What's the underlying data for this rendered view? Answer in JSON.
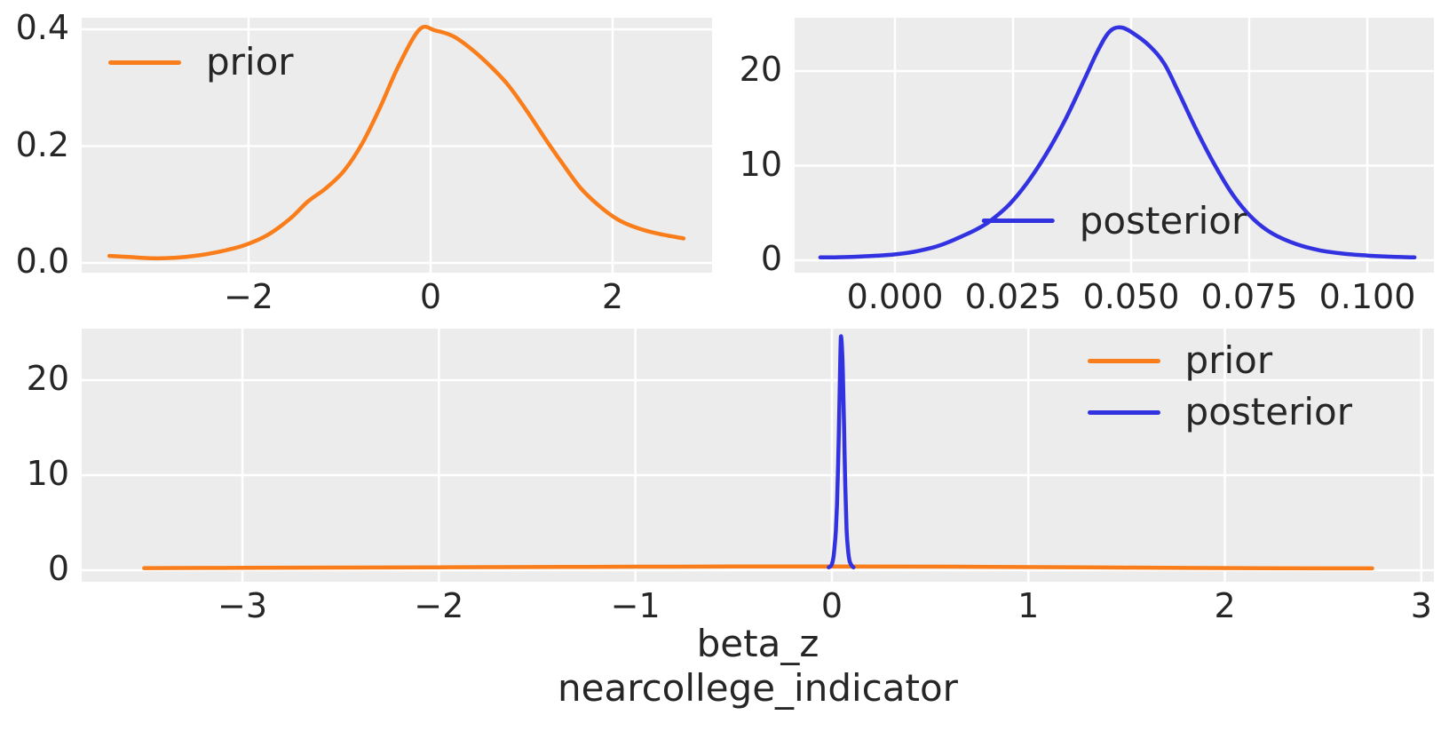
{
  "style": {
    "figure_background": "#ffffff",
    "axes_background": "#ececec",
    "grid_color": "#ffffff",
    "text_color": "#262626",
    "prior_color": "#f97e1b",
    "posterior_color": "#3232e1"
  },
  "chart_data": [
    {
      "id": "prior-density",
      "type": "line",
      "title": "",
      "xlabel": "",
      "ylabel": "",
      "grid": true,
      "xlim": [
        -3.834,
        3.093
      ],
      "ylim": [
        -0.0167,
        0.4198
      ],
      "xticks": [
        {
          "v": -2,
          "label": "−2"
        },
        {
          "v": 0,
          "label": "0"
        },
        {
          "v": 2,
          "label": "2"
        }
      ],
      "yticks": [
        {
          "v": 0.0,
          "label": "0.0"
        },
        {
          "v": 0.2,
          "label": "0.2"
        },
        {
          "v": 0.4,
          "label": "0.4"
        }
      ],
      "legend": {
        "position": "upper-left",
        "items": [
          {
            "label": "prior",
            "color": "#f97e1b"
          }
        ]
      },
      "series": [
        {
          "name": "prior",
          "color": "#f97e1b",
          "x": [
            -3.53,
            -3.3,
            -3.05,
            -2.8,
            -2.55,
            -2.3,
            -2.05,
            -1.8,
            -1.55,
            -1.35,
            -1.15,
            -0.95,
            -0.75,
            -0.55,
            -0.35,
            -0.12,
            0.05,
            0.25,
            0.45,
            0.65,
            0.85,
            1.05,
            1.25,
            1.45,
            1.65,
            1.85,
            2.05,
            2.25,
            2.5,
            2.78
          ],
          "y": [
            0.012,
            0.01,
            0.008,
            0.009,
            0.013,
            0.02,
            0.03,
            0.047,
            0.075,
            0.105,
            0.128,
            0.158,
            0.205,
            0.268,
            0.338,
            0.4,
            0.398,
            0.388,
            0.366,
            0.338,
            0.305,
            0.262,
            0.215,
            0.17,
            0.128,
            0.098,
            0.075,
            0.061,
            0.05,
            0.042
          ]
        }
      ]
    },
    {
      "id": "posterior-density",
      "type": "line",
      "title": "",
      "xlabel": "",
      "ylabel": "",
      "grid": true,
      "xlim": [
        -0.02124,
        0.1141
      ],
      "ylim": [
        -1.31,
        25.63
      ],
      "xticks": [
        {
          "v": 0.0,
          "label": "0.000"
        },
        {
          "v": 0.025,
          "label": "0.025"
        },
        {
          "v": 0.05,
          "label": "0.050"
        },
        {
          "v": 0.075,
          "label": "0.075"
        },
        {
          "v": 0.1,
          "label": "0.100"
        }
      ],
      "yticks": [
        {
          "v": 0,
          "label": "0"
        },
        {
          "v": 10,
          "label": "10"
        },
        {
          "v": 20,
          "label": "20"
        }
      ],
      "legend": {
        "position": "lower-center",
        "items": [
          {
            "label": "posterior",
            "color": "#3232e1"
          }
        ]
      },
      "series": [
        {
          "name": "posterior",
          "color": "#3232e1",
          "x": [
            -0.0158,
            -0.012,
            -0.008,
            -0.004,
            0.0,
            0.004,
            0.008,
            0.011,
            0.014,
            0.017,
            0.02,
            0.024,
            0.028,
            0.032,
            0.036,
            0.04,
            0.043,
            0.0455,
            0.048,
            0.051,
            0.054,
            0.057,
            0.06,
            0.064,
            0.068,
            0.072,
            0.076,
            0.08,
            0.085,
            0.09,
            0.095,
            0.1,
            0.105,
            0.11
          ],
          "y": [
            0.3,
            0.32,
            0.38,
            0.48,
            0.62,
            0.9,
            1.35,
            1.85,
            2.5,
            3.2,
            4.1,
            5.8,
            8.2,
            11.2,
            14.8,
            19.0,
            22.2,
            24.2,
            24.6,
            23.8,
            22.6,
            20.8,
            17.8,
            13.6,
            9.8,
            6.6,
            4.3,
            2.8,
            1.7,
            1.05,
            0.7,
            0.5,
            0.38,
            0.3
          ]
        }
      ]
    },
    {
      "id": "prior-vs-posterior",
      "type": "line",
      "title": "",
      "xlabel": "beta_z\nnearcollege_indicator",
      "ylabel": "",
      "grid": true,
      "xlim": [
        -3.818,
        3.064
      ],
      "ylim": [
        -1.215,
        25.42
      ],
      "xticks": [
        {
          "v": -3,
          "label": "−3"
        },
        {
          "v": -2,
          "label": "−2"
        },
        {
          "v": -1,
          "label": "−1"
        },
        {
          "v": 0,
          "label": "0"
        },
        {
          "v": 1,
          "label": "1"
        },
        {
          "v": 2,
          "label": "2"
        },
        {
          "v": 3,
          "label": "3"
        }
      ],
      "yticks": [
        {
          "v": 0,
          "label": "0"
        },
        {
          "v": 10,
          "label": "10"
        },
        {
          "v": 20,
          "label": "20"
        }
      ],
      "legend": {
        "position": "upper-right",
        "items": [
          {
            "label": "prior",
            "color": "#f97e1b"
          },
          {
            "label": "posterior",
            "color": "#3232e1"
          }
        ]
      },
      "series": [
        {
          "name": "prior",
          "color": "#f97e1b",
          "x": [
            -3.5,
            -3.0,
            -2.5,
            -2.0,
            -1.5,
            -1.0,
            -0.5,
            -0.12,
            0.3,
            0.8,
            1.3,
            1.8,
            2.2,
            2.5,
            2.75
          ],
          "y": [
            0.22,
            0.25,
            0.28,
            0.31,
            0.34,
            0.37,
            0.39,
            0.4,
            0.385,
            0.355,
            0.3,
            0.24,
            0.21,
            0.2,
            0.195
          ]
        },
        {
          "name": "posterior",
          "color": "#3232e1",
          "x": [
            -0.016,
            -0.008,
            0.0,
            0.008,
            0.014,
            0.02,
            0.026,
            0.032,
            0.038,
            0.043,
            0.0455,
            0.048,
            0.052,
            0.057,
            0.062,
            0.068,
            0.075,
            0.082,
            0.09,
            0.1,
            0.11
          ],
          "y": [
            0.3,
            0.4,
            0.62,
            1.35,
            2.5,
            4.1,
            6.9,
            11.2,
            17.0,
            22.2,
            24.4,
            24.4,
            23.2,
            20.0,
            15.0,
            9.0,
            4.3,
            2.2,
            1.0,
            0.5,
            0.3
          ]
        }
      ]
    }
  ]
}
